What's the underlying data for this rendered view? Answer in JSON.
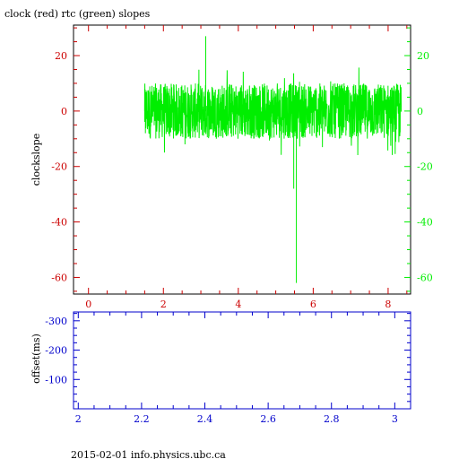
{
  "colors": {
    "clock": "#cc0000",
    "rtc": "#00ee00",
    "offset": "#0000cc",
    "axis": "#000000"
  },
  "chart_data": [
    {
      "type": "line",
      "title": "clock (red) rtc (green) slopes",
      "ylabel": "clockslope",
      "xlabel": "",
      "xlim": [
        -0.4,
        8.6
      ],
      "ylim": [
        -66,
        31
      ],
      "x_ticks": [
        0,
        2,
        4,
        6,
        8
      ],
      "y_ticks_left": [
        20,
        0,
        -20,
        -40,
        -60
      ],
      "y_ticks_right": [
        20,
        0,
        -20,
        -40,
        -60
      ],
      "grid": false,
      "series": [
        {
          "name": "rtc",
          "color": "#00ee00",
          "x_range": [
            1.5,
            8.35
          ],
          "band": [
            -10,
            10
          ],
          "spikes": [
            {
              "x": 1.5,
              "y": 8
            },
            {
              "x": 1.52,
              "y": -8
            },
            {
              "x": 3.13,
              "y": 27
            },
            {
              "x": 5.48,
              "y": -28
            },
            {
              "x": 5.55,
              "y": -62
            }
          ]
        }
      ]
    },
    {
      "type": "line",
      "title": "",
      "ylabel": "offset(ms)",
      "xlabel": "",
      "xlim": [
        1.985,
        3.05
      ],
      "ylim": [
        -330,
        0
      ],
      "x_ticks": [
        2,
        2.2,
        2.4,
        2.6,
        2.8,
        3
      ],
      "x_tick_labels": [
        "2",
        "2.2",
        "2.4",
        "2.6",
        "2.8",
        "3"
      ],
      "y_ticks": [
        -300,
        -200,
        -100
      ],
      "y_tick_labels": [
        "-300",
        "-200",
        "-100"
      ],
      "grid": false,
      "series": []
    }
  ],
  "footer": "2015-02-01 info.physics.ubc.ca"
}
